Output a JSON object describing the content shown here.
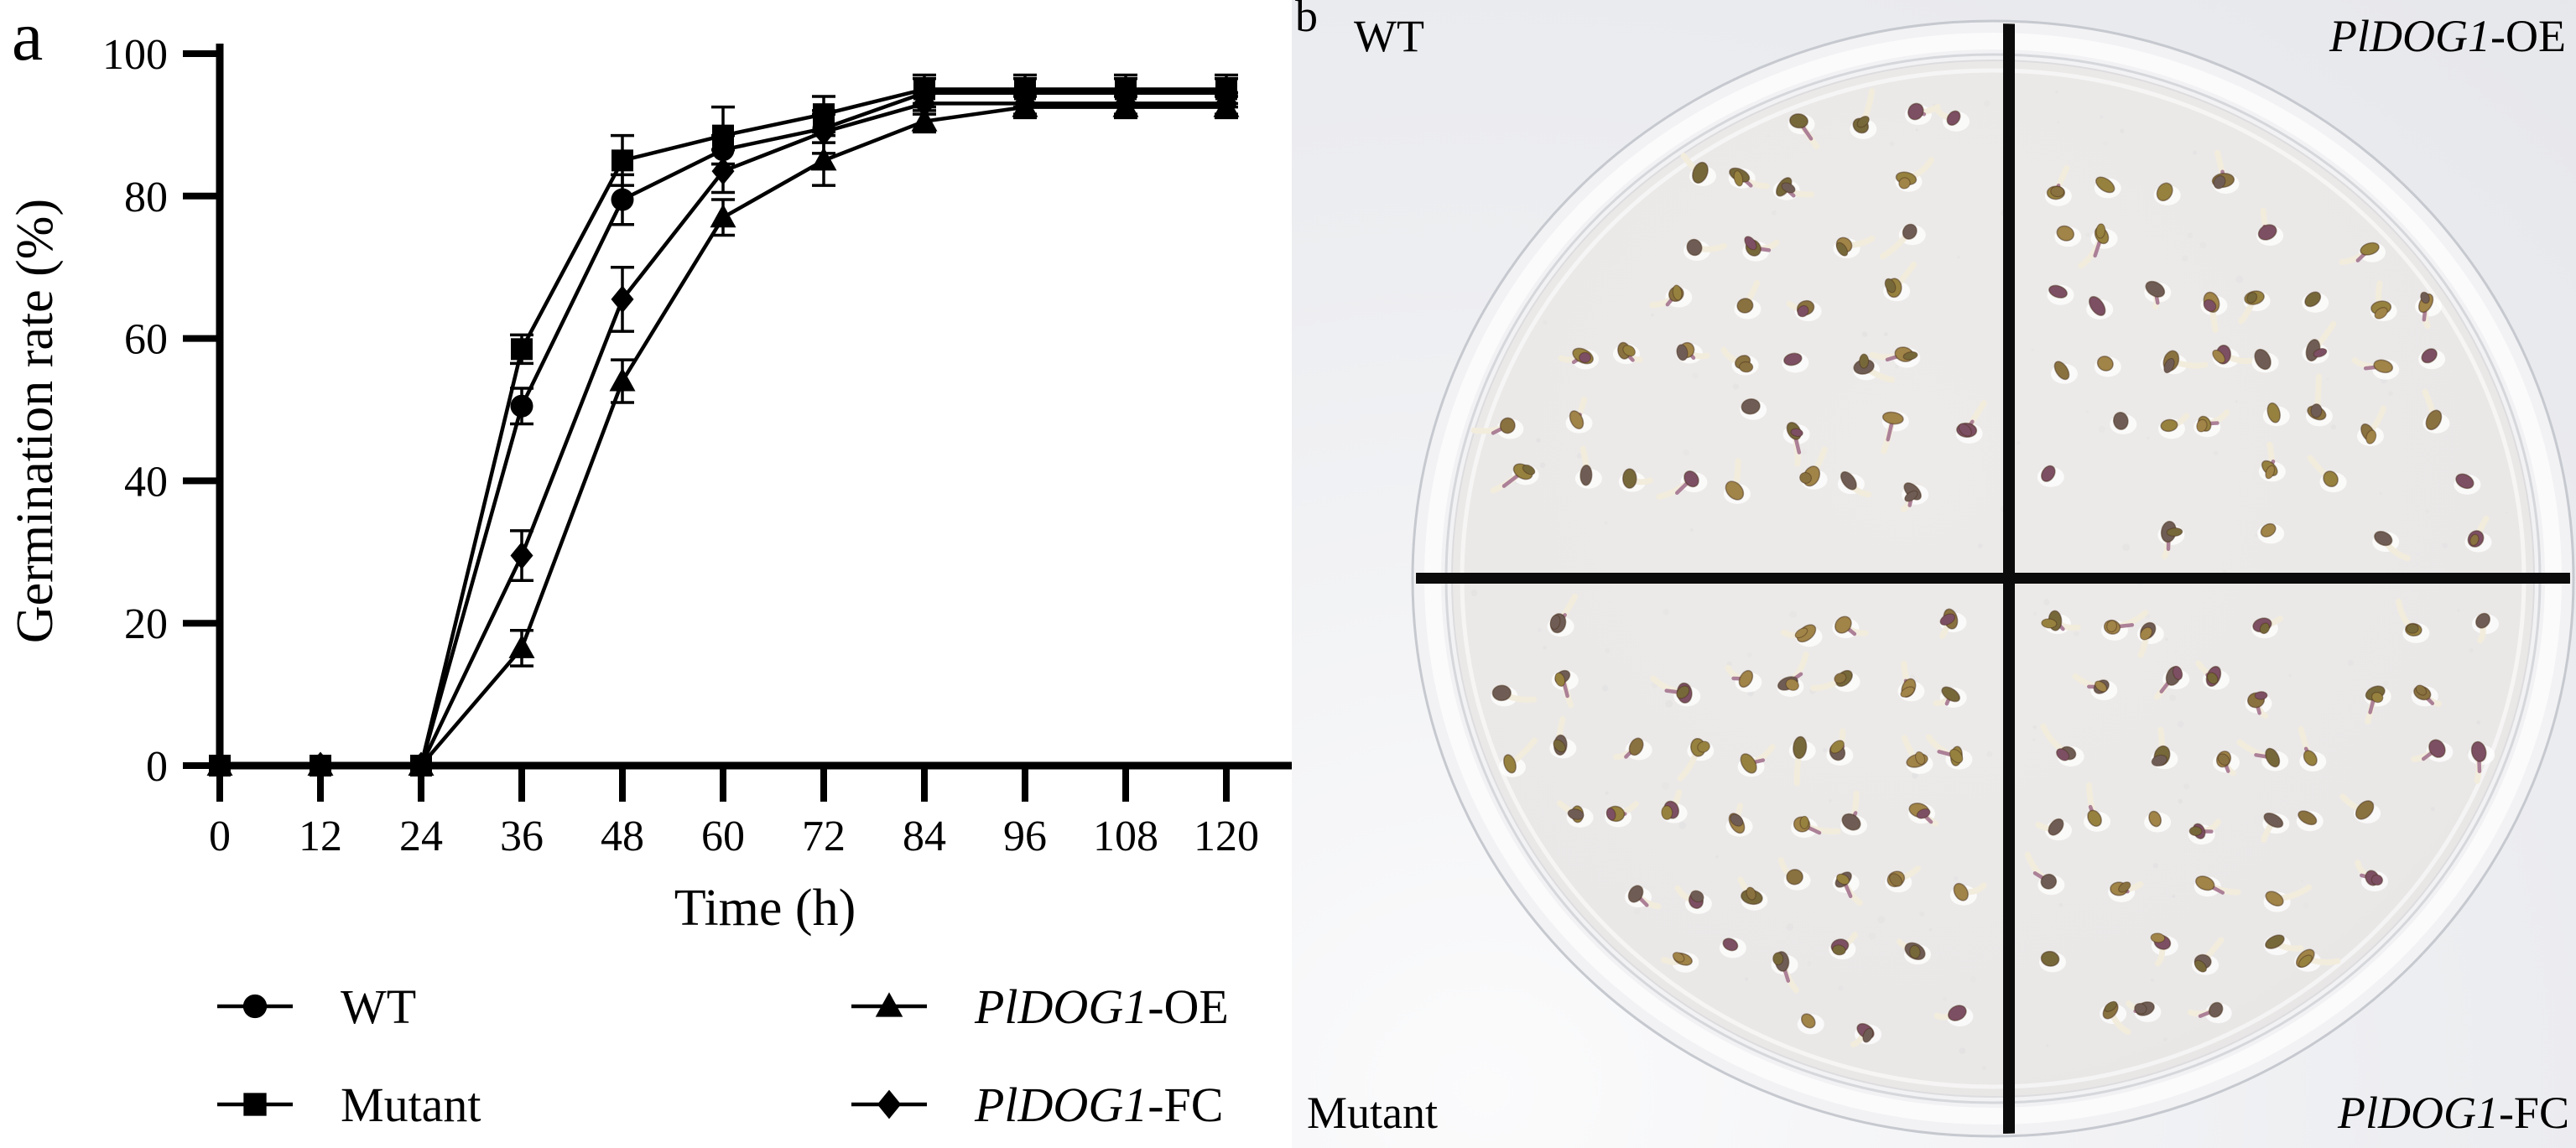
{
  "figure": {
    "panel_a_label": "a",
    "panel_b_label": "b"
  },
  "chart_data": {
    "type": "line",
    "title": "",
    "xlabel": "Time (h)",
    "ylabel": "Germination rate (%)",
    "x": [
      0,
      12,
      24,
      36,
      48,
      60,
      72,
      84,
      96,
      108,
      120
    ],
    "yticks": [
      0,
      20,
      40,
      60,
      80,
      100
    ],
    "xlim": [
      0,
      128
    ],
    "ylim": [
      0,
      100
    ],
    "grid": false,
    "legend_position": "below-two-columns",
    "line_color": "#000000",
    "marker_color": "#000000",
    "series": [
      {
        "name": "WT",
        "italic": "",
        "rest": "WT",
        "marker": "circle",
        "values": [
          0,
          0,
          0,
          50.5,
          79.5,
          86.5,
          89.5,
          94.5,
          94.5,
          94.5,
          94.5
        ],
        "errors": [
          0,
          0,
          0,
          2.5,
          3.5,
          2,
          2,
          2,
          2,
          2,
          2
        ]
      },
      {
        "name": "Mutant",
        "italic": "",
        "rest": "Mutant",
        "marker": "square",
        "values": [
          0,
          0,
          0,
          58.5,
          85,
          88.5,
          91.5,
          95,
          95,
          95,
          95
        ],
        "errors": [
          0,
          0,
          0,
          2,
          3.5,
          4,
          2.5,
          2,
          2,
          2,
          2
        ]
      },
      {
        "name": "PlDOG1-OE",
        "italic": "PlDOG1",
        "rest": "-OE",
        "marker": "triangle",
        "values": [
          0,
          0,
          0,
          16.5,
          54,
          77,
          85,
          90.5,
          92.5,
          92.5,
          92.5
        ],
        "errors": [
          0,
          0,
          0,
          2.5,
          3,
          2.5,
          3.5,
          1.5,
          1.5,
          1.5,
          1.5
        ]
      },
      {
        "name": "PlDOG1-FC",
        "italic": "PlDOG1",
        "rest": "-FC",
        "marker": "diamond",
        "values": [
          0,
          0,
          0,
          29.5,
          65.5,
          83.5,
          89,
          93,
          93,
          93,
          93
        ],
        "errors": [
          0,
          0,
          0,
          3.5,
          4.5,
          3,
          3,
          1.5,
          1.5,
          1.5,
          1.5
        ]
      }
    ]
  },
  "photo": {
    "labels": {
      "top_left_italic": "",
      "top_left": "WT",
      "top_right_italic": "PlDOG1",
      "top_right": "-OE",
      "bottom_left_italic": "",
      "bottom_left": "Mutant",
      "bottom_right_italic": "PlDOG1",
      "bottom_right": "-FC"
    },
    "background_color": "#edeef1",
    "dish_fill": "#eae8e7",
    "rim_highlight": "#fbfbfc",
    "rim_edge": "#c6c9cf",
    "divider_color": "#0b0b0b",
    "seed_palette": [
      "#a08448",
      "#77683a",
      "#8a7240",
      "#6f5d55",
      "#96813f",
      "#7d4f63"
    ],
    "sprout_color": "#f2ecdc",
    "sprout_accent": "#9a6584",
    "quadrants": [
      {
        "name": "WT",
        "rows": 8,
        "cols": 10,
        "density": 0.82,
        "sprout_prob": 0.85
      },
      {
        "name": "PlDOG1-OE",
        "rows": 7,
        "cols": 10,
        "density": 0.72,
        "sprout_prob": 0.6
      },
      {
        "name": "Mutant",
        "rows": 8,
        "cols": 10,
        "density": 0.85,
        "sprout_prob": 0.92
      },
      {
        "name": "PlDOG1-FC",
        "rows": 8,
        "cols": 10,
        "density": 0.78,
        "sprout_prob": 0.85
      }
    ]
  }
}
